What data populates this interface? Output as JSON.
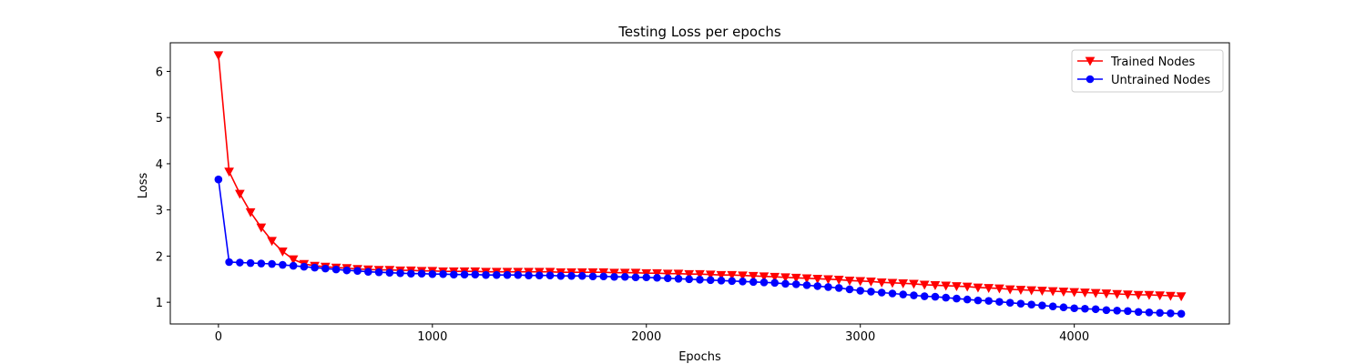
{
  "chart_data": {
    "type": "line",
    "title": "Testing Loss per epochs",
    "xlabel": "Epochs",
    "ylabel": "Loss",
    "xlim": [
      -225,
      4725
    ],
    "ylim": [
      0.53,
      6.62
    ],
    "xticks": [
      0,
      1000,
      2000,
      3000,
      4000
    ],
    "yticks": [
      1,
      2,
      3,
      4,
      5,
      6
    ],
    "grid": false,
    "legend_position": "top-right",
    "x": [
      0,
      50,
      100,
      150,
      200,
      250,
      300,
      350,
      400,
      450,
      500,
      550,
      600,
      650,
      700,
      750,
      800,
      850,
      900,
      950,
      1000,
      1050,
      1100,
      1150,
      1200,
      1250,
      1300,
      1350,
      1400,
      1450,
      1500,
      1550,
      1600,
      1650,
      1700,
      1750,
      1800,
      1850,
      1900,
      1950,
      2000,
      2050,
      2100,
      2150,
      2200,
      2250,
      2300,
      2350,
      2400,
      2450,
      2500,
      2550,
      2600,
      2650,
      2700,
      2750,
      2800,
      2850,
      2900,
      2950,
      3000,
      3050,
      3100,
      3150,
      3200,
      3250,
      3300,
      3350,
      3400,
      3450,
      3500,
      3550,
      3600,
      3650,
      3700,
      3750,
      3800,
      3850,
      3900,
      3950,
      4000,
      4050,
      4100,
      4150,
      4200,
      4250,
      4300,
      4350,
      4400,
      4450,
      4500
    ],
    "series": [
      {
        "name": "Trained Nodes",
        "color": "#ff0000",
        "marker": "triangle-down",
        "values": [
          6.35,
          3.83,
          3.35,
          2.95,
          2.62,
          2.33,
          2.1,
          1.93,
          1.83,
          1.79,
          1.77,
          1.75,
          1.74,
          1.72,
          1.71,
          1.7,
          1.7,
          1.69,
          1.69,
          1.68,
          1.68,
          1.67,
          1.67,
          1.67,
          1.67,
          1.66,
          1.66,
          1.66,
          1.66,
          1.66,
          1.66,
          1.66,
          1.65,
          1.65,
          1.65,
          1.65,
          1.65,
          1.64,
          1.64,
          1.64,
          1.63,
          1.63,
          1.62,
          1.62,
          1.61,
          1.61,
          1.6,
          1.59,
          1.59,
          1.58,
          1.57,
          1.56,
          1.55,
          1.54,
          1.53,
          1.52,
          1.51,
          1.5,
          1.49,
          1.47,
          1.46,
          1.45,
          1.43,
          1.42,
          1.41,
          1.4,
          1.38,
          1.37,
          1.36,
          1.35,
          1.34,
          1.32,
          1.31,
          1.3,
          1.28,
          1.27,
          1.26,
          1.25,
          1.24,
          1.23,
          1.22,
          1.21,
          1.2,
          1.19,
          1.18,
          1.17,
          1.16,
          1.16,
          1.15,
          1.14,
          1.13
        ]
      },
      {
        "name": "Untrained Nodes",
        "color": "#0000ff",
        "marker": "circle",
        "values": [
          3.66,
          1.87,
          1.86,
          1.85,
          1.84,
          1.83,
          1.81,
          1.79,
          1.77,
          1.75,
          1.73,
          1.71,
          1.69,
          1.68,
          1.66,
          1.65,
          1.64,
          1.63,
          1.62,
          1.62,
          1.61,
          1.61,
          1.6,
          1.6,
          1.6,
          1.59,
          1.59,
          1.59,
          1.59,
          1.58,
          1.58,
          1.58,
          1.57,
          1.57,
          1.57,
          1.56,
          1.56,
          1.55,
          1.55,
          1.54,
          1.54,
          1.53,
          1.52,
          1.51,
          1.5,
          1.49,
          1.48,
          1.47,
          1.46,
          1.45,
          1.44,
          1.43,
          1.42,
          1.4,
          1.39,
          1.37,
          1.35,
          1.33,
          1.31,
          1.28,
          1.25,
          1.23,
          1.21,
          1.19,
          1.17,
          1.15,
          1.13,
          1.12,
          1.1,
          1.08,
          1.06,
          1.04,
          1.03,
          1.01,
          0.99,
          0.97,
          0.95,
          0.93,
          0.91,
          0.89,
          0.87,
          0.86,
          0.85,
          0.83,
          0.82,
          0.81,
          0.79,
          0.78,
          0.77,
          0.76,
          0.75
        ]
      }
    ]
  }
}
